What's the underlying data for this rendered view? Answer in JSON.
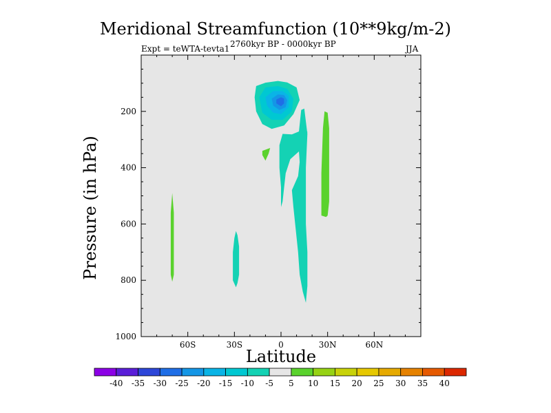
{
  "chart_data": {
    "type": "contour",
    "title": "Meridional Streamfunction (10**9kg/m-2)",
    "subtitle_left": "Expt = teWTA-tevta1",
    "subtitle_center": "2760kyr BP - 0000kyr BP",
    "subtitle_right": "JJA",
    "xlabel": "Latitude",
    "ylabel": "Pressure (in hPa)",
    "xlim": [
      -90,
      90
    ],
    "ylim": [
      1000,
      0
    ],
    "x_ticks": [
      {
        "value": -60,
        "label": "60S"
      },
      {
        "value": -30,
        "label": "30S"
      },
      {
        "value": 0,
        "label": "0"
      },
      {
        "value": 30,
        "label": "30N"
      },
      {
        "value": 60,
        "label": "60N"
      }
    ],
    "y_ticks": [
      {
        "value": 200,
        "label": "200"
      },
      {
        "value": 400,
        "label": "400"
      },
      {
        "value": 600,
        "label": "600"
      },
      {
        "value": 800,
        "label": "800"
      },
      {
        "value": 1000,
        "label": "1000"
      }
    ],
    "colorbar": {
      "levels": [
        "-40",
        "-35",
        "-30",
        "-25",
        "-20",
        "-15",
        "-10",
        "-5",
        "5",
        "10",
        "15",
        "20",
        "25",
        "30",
        "35",
        "40"
      ],
      "colors": [
        "#8C00E6",
        "#5A1ED8",
        "#2D46D8",
        "#1F6EE6",
        "#1496E6",
        "#0AB4E6",
        "#00C8D2",
        "#14D2B4",
        "#E6E6E6",
        "#5AD22D",
        "#96D214",
        "#C8D20A",
        "#E6C800",
        "#E6AA00",
        "#E68200",
        "#E65A00",
        "#DC2800"
      ]
    },
    "background_color": "#E6E6E6",
    "regions": [
      {
        "level": "-5 to -10",
        "color": "#14D2B4",
        "points": [
          [
            -16,
            110
          ],
          [
            -10,
            98
          ],
          [
            -2,
            92
          ],
          [
            4,
            97
          ],
          [
            10,
            115
          ],
          [
            12,
            160
          ],
          [
            8,
            210
          ],
          [
            2,
            250
          ],
          [
            -6,
            262
          ],
          [
            -12,
            245
          ],
          [
            -16,
            200
          ],
          [
            -17,
            150
          ]
        ]
      },
      {
        "level": "-5 to -10",
        "color": "#14D2B4",
        "points": [
          [
            1,
            280
          ],
          [
            7,
            282
          ],
          [
            13,
            268
          ],
          [
            17,
            272
          ],
          [
            16,
            320
          ],
          [
            11,
            345
          ],
          [
            6,
            370
          ],
          [
            3,
            420
          ],
          [
            2,
            470
          ],
          [
            1,
            520
          ],
          [
            0,
            540
          ],
          [
            0,
            470
          ],
          [
            -1,
            400
          ],
          [
            -1,
            320
          ]
        ]
      },
      {
        "level": "-5 to -10",
        "color": "#14D2B4",
        "points": [
          [
            11,
            300
          ],
          [
            13,
            195
          ],
          [
            15,
            190
          ],
          [
            17,
            280
          ],
          [
            16,
            400
          ],
          [
            16,
            600
          ],
          [
            17,
            700
          ],
          [
            17,
            820
          ],
          [
            16,
            880
          ],
          [
            14,
            840
          ],
          [
            12,
            780
          ],
          [
            11,
            700
          ],
          [
            8,
            540
          ],
          [
            7,
            480
          ],
          [
            11,
            430
          ],
          [
            12,
            380
          ]
        ]
      },
      {
        "level": "-10 to -15",
        "color": "#00C8D2",
        "points": [
          [
            -14,
            150
          ],
          [
            -10,
            115
          ],
          [
            -2,
            110
          ],
          [
            4,
            120
          ],
          [
            8,
            155
          ],
          [
            7,
            200
          ],
          [
            1,
            230
          ],
          [
            -6,
            230
          ],
          [
            -12,
            205
          ]
        ]
      },
      {
        "level": "-15 to -20",
        "color": "#0AB4E6",
        "points": [
          [
            -10,
            150
          ],
          [
            -5,
            128
          ],
          [
            1,
            128
          ],
          [
            5,
            145
          ],
          [
            5,
            185
          ],
          [
            0,
            210
          ],
          [
            -5,
            205
          ],
          [
            -9,
            180
          ]
        ]
      },
      {
        "level": "-20 to -25",
        "color": "#1496E6",
        "points": [
          [
            -6,
            155
          ],
          [
            -2,
            140
          ],
          [
            2,
            142
          ],
          [
            4,
            160
          ],
          [
            3,
            185
          ],
          [
            -1,
            195
          ],
          [
            -5,
            180
          ]
        ]
      },
      {
        "level": "-25 to -30",
        "color": "#1F6EE6",
        "points": [
          [
            -3,
            158
          ],
          [
            0,
            150
          ],
          [
            2,
            155
          ],
          [
            2,
            172
          ],
          [
            0,
            182
          ],
          [
            -3,
            172
          ]
        ]
      },
      {
        "level": "-5 to -10",
        "color": "#14D2B4",
        "points": [
          [
            -29,
            625
          ],
          [
            -28,
            640
          ],
          [
            -27,
            680
          ],
          [
            -27,
            780
          ],
          [
            -28,
            810
          ],
          [
            -29,
            825
          ],
          [
            -31,
            800
          ],
          [
            -31,
            700
          ],
          [
            -30,
            650
          ]
        ]
      },
      {
        "level": "5 to 10",
        "color": "#5AD22D",
        "points": [
          [
            -70,
            490
          ],
          [
            -69,
            560
          ],
          [
            -69,
            780
          ],
          [
            -70,
            805
          ],
          [
            -71,
            780
          ],
          [
            -71,
            560
          ]
        ]
      },
      {
        "level": "5 to 10",
        "color": "#5AD22D",
        "points": [
          [
            -12,
            340
          ],
          [
            -7,
            330
          ],
          [
            -8,
            350
          ],
          [
            -10,
            375
          ],
          [
            -12,
            355
          ]
        ]
      },
      {
        "level": "5 to 10",
        "color": "#5AD22D",
        "points": [
          [
            28,
            200
          ],
          [
            30,
            205
          ],
          [
            31,
            260
          ],
          [
            31,
            520
          ],
          [
            30,
            570
          ],
          [
            29,
            575
          ],
          [
            26,
            570
          ],
          [
            26,
            420
          ],
          [
            27,
            260
          ]
        ]
      }
    ]
  }
}
